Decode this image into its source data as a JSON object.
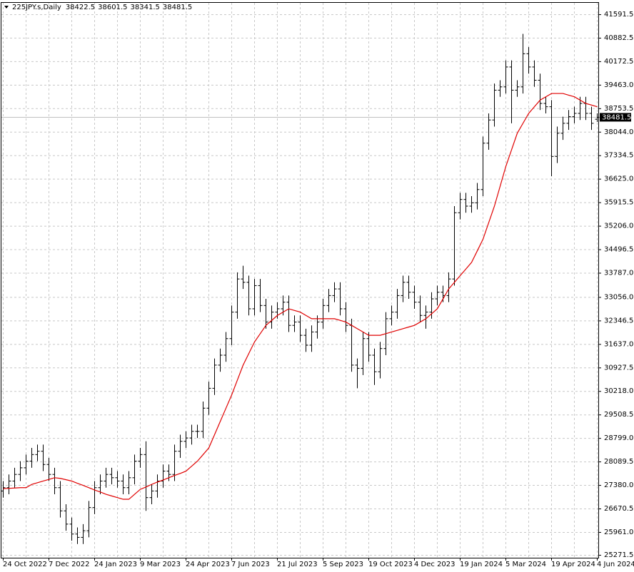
{
  "chart_data": {
    "type": "ohlc",
    "symbol": "225JPY.s,Daily",
    "categories": [
      "24 Oct 2022",
      null,
      null,
      null,
      null,
      null,
      null,
      null,
      "7 Dec 2022",
      null,
      null,
      null,
      null,
      null,
      null,
      null,
      "24 Jan 2023",
      null,
      null,
      null,
      null,
      null,
      null,
      null,
      "9 Mar 2023",
      null,
      null,
      null,
      null,
      null,
      null,
      null,
      "24 Apr 2023",
      null,
      null,
      null,
      null,
      null,
      null,
      null,
      "7 Jun 2023",
      null,
      null,
      null,
      null,
      null,
      null,
      null,
      "21 Jul 2023",
      null,
      null,
      null,
      null,
      null,
      null,
      null,
      "5 Sep 2023",
      null,
      null,
      null,
      null,
      null,
      null,
      null,
      "19 Oct 2023",
      null,
      null,
      null,
      null,
      null,
      null,
      null,
      "4 Dec 2023",
      null,
      null,
      null,
      null,
      null,
      null,
      null,
      "19 Jan 2024",
      null,
      null,
      null,
      null,
      null,
      null,
      null,
      "5 Mar 2024",
      null,
      null,
      null,
      null,
      null,
      null,
      null,
      "19 Apr 2024",
      null,
      null,
      null,
      null,
      null,
      null,
      null,
      "4 Jun 2024"
    ],
    "open": [
      27200,
      27300,
      27500,
      27700,
      27900,
      28100,
      28300,
      28400,
      28000,
      27700,
      27300,
      26600,
      26200,
      25900,
      25800,
      26000,
      26700,
      27300,
      27500,
      27700,
      27600,
      27500,
      27300,
      27600,
      28100,
      28300,
      27000,
      27200,
      27500,
      27800,
      27700,
      28400,
      28700,
      28800,
      29000,
      29000,
      29700,
      30300,
      31000,
      31300,
      31800,
      32600,
      33600,
      33500,
      32700,
      33400,
      32800,
      32300,
      32600,
      32700,
      32900,
      32200,
      32300,
      31900,
      31600,
      32000,
      32300,
      32800,
      33100,
      33300,
      32700,
      32200,
      31000,
      30900,
      31800,
      31300,
      30800,
      31500,
      32400,
      32600,
      33100,
      33500,
      33200,
      32900,
      32500,
      32600,
      33000,
      33200,
      33100,
      33600,
      35600,
      36000,
      35800,
      35900,
      36300,
      37700,
      38400,
      39300,
      39400,
      40000,
      39300,
      39400,
      40400,
      40000,
      39600,
      38900,
      38800,
      37300,
      38000,
      38300,
      38500,
      38600,
      38900,
      38600,
      38422.5
    ],
    "high": [
      27500,
      27700,
      27900,
      28100,
      28300,
      28500,
      28600,
      28600,
      28200,
      27900,
      27500,
      26800,
      26400,
      26100,
      26200,
      26900,
      27500,
      27700,
      27900,
      27900,
      27800,
      27700,
      27800,
      28300,
      28500,
      28700,
      27400,
      27700,
      28000,
      28000,
      28600,
      28900,
      29000,
      29200,
      29200,
      29900,
      30500,
      31200,
      31500,
      32000,
      32800,
      33800,
      34000,
      33700,
      33600,
      33600,
      33000,
      32800,
      32900,
      33100,
      33100,
      32500,
      32500,
      32100,
      32200,
      32500,
      33000,
      33300,
      33500,
      33500,
      32900,
      32400,
      31200,
      32000,
      32000,
      31500,
      31700,
      32600,
      32800,
      33300,
      33700,
      33700,
      33400,
      33100,
      32800,
      33200,
      33400,
      33400,
      33800,
      35800,
      36200,
      36200,
      36100,
      36500,
      37900,
      38600,
      39500,
      39600,
      40200,
      40200,
      39600,
      41000,
      40600,
      40200,
      39800,
      39100,
      39000,
      38200,
      38500,
      38700,
      38800,
      39100,
      39100,
      38800,
      38601.5
    ],
    "low": [
      27000,
      27100,
      27300,
      27500,
      27700,
      27900,
      28100,
      27800,
      27500,
      27100,
      26400,
      26000,
      25700,
      25600,
      25600,
      25800,
      26500,
      27100,
      27300,
      27400,
      27300,
      27100,
      27100,
      27400,
      27900,
      26600,
      26800,
      27000,
      27300,
      27500,
      27500,
      28200,
      28500,
      28600,
      28800,
      28800,
      29500,
      30100,
      30800,
      31100,
      31600,
      32400,
      33300,
      32500,
      32500,
      32600,
      32100,
      32100,
      32400,
      32500,
      32000,
      32000,
      31700,
      31400,
      31400,
      31800,
      32100,
      32600,
      32900,
      32500,
      32000,
      30800,
      30300,
      30700,
      31100,
      30400,
      30600,
      31300,
      32200,
      32400,
      32900,
      33000,
      32700,
      32300,
      32100,
      32400,
      32800,
      32900,
      32900,
      33400,
      35400,
      35600,
      35600,
      35700,
      36100,
      37500,
      38200,
      39100,
      39200,
      38300,
      39100,
      39200,
      39800,
      39400,
      38700,
      38600,
      36700,
      37100,
      37800,
      38100,
      38300,
      38400,
      38400,
      38100,
      38341.5
    ],
    "close": [
      27300,
      27500,
      27700,
      27900,
      28100,
      28300,
      28400,
      28000,
      27700,
      27300,
      26600,
      26200,
      25900,
      25800,
      26000,
      26700,
      27300,
      27500,
      27700,
      27600,
      27500,
      27300,
      27600,
      28100,
      28300,
      27000,
      27200,
      27500,
      27800,
      27700,
      28400,
      28700,
      28800,
      29000,
      29000,
      29700,
      30300,
      31000,
      31300,
      31800,
      32600,
      33600,
      33500,
      32700,
      33400,
      32800,
      32300,
      32600,
      32700,
      32900,
      32200,
      32300,
      31900,
      31600,
      32000,
      32300,
      32800,
      33100,
      33300,
      32700,
      32200,
      31000,
      30900,
      31800,
      31300,
      30800,
      31500,
      32400,
      32600,
      33100,
      33500,
      33200,
      32900,
      32500,
      32600,
      33000,
      33200,
      33100,
      33600,
      35600,
      36000,
      35800,
      35900,
      36300,
      37700,
      38400,
      39300,
      39400,
      40000,
      39300,
      39400,
      40400,
      40000,
      39600,
      38900,
      38800,
      37300,
      38000,
      38300,
      38500,
      38600,
      38900,
      38600,
      38300,
      38481.5
    ],
    "color": "#000000",
    "moving_average": {
      "color": "#e00000",
      "values": [
        27270,
        27280,
        27290,
        27300,
        27300,
        27400,
        27450,
        27500,
        27550,
        27600,
        27580,
        27540,
        27500,
        27430,
        27370,
        27300,
        27230,
        27170,
        27100,
        27050,
        27000,
        26950,
        26950,
        27100,
        27250,
        27320,
        27400,
        27470,
        27530,
        27600,
        27670,
        27730,
        27800,
        27950,
        28100,
        28300,
        28500,
        28900,
        29300,
        29700,
        30100,
        30550,
        31000,
        31350,
        31700,
        31950,
        32200,
        32350,
        32500,
        32600,
        32700,
        32650,
        32600,
        32500,
        32400,
        32400,
        32400,
        32400,
        32400,
        32350,
        32300,
        32200,
        32100,
        32000,
        31900,
        31900,
        31900,
        31950,
        32000,
        32050,
        32100,
        32150,
        32200,
        32300,
        32400,
        32550,
        32700,
        33000,
        33300,
        33500,
        33700,
        33900,
        34100,
        34450,
        34800,
        35300,
        35800,
        36400,
        37000,
        37500,
        38000,
        38300,
        38600,
        38800,
        39000,
        39100,
        39200,
        39200,
        39200,
        39150,
        39100,
        39000,
        38900,
        38850,
        38800
      ]
    },
    "current_price_line_color": "#c0c0c0",
    "ylim": [
      25185,
      41936
    ],
    "yticks": [
      41591.5,
      40882.5,
      40172.5,
      {
        "value": 39463,
        "label": "39463.0"
      },
      38753.5,
      {
        "value": 38044,
        "label": "38044.0"
      },
      37334.5,
      {
        "value": 36625,
        "label": "36625.0"
      },
      35915.5,
      {
        "value": 35206,
        "label": "35206.0"
      },
      34496.5,
      {
        "value": 33787,
        "label": "33787.0"
      },
      {
        "value": 33056,
        "label": "33056.0"
      },
      32346.5,
      {
        "value": 31637,
        "label": "31637.0"
      },
      30927.5,
      {
        "value": 30218,
        "label": "30218.0"
      },
      29508.5,
      {
        "value": 28799,
        "label": "28799.0"
      },
      28089.5,
      {
        "value": 27380,
        "label": "27380.0"
      },
      26670.5,
      {
        "value": 25961,
        "label": "25961.0"
      },
      25271.5
    ],
    "grid": true
  }
}
